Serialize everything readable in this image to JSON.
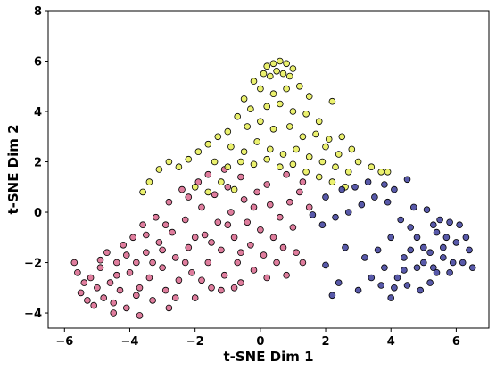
{
  "chart_data": {
    "type": "scatter",
    "title": "",
    "xlabel": "t-SNE Dim 1",
    "ylabel": "t-SNE Dim 2",
    "xlim": [
      -6.5,
      7
    ],
    "ylim": [
      -4.6,
      8
    ],
    "xticks": [
      -6,
      -4,
      -2,
      0,
      2,
      4,
      6
    ],
    "yticks": [
      -4,
      -2,
      0,
      2,
      4,
      6,
      8
    ],
    "grid": false,
    "legend": "none",
    "series": [
      {
        "color": "#d9668c",
        "points": [
          [
            -5.6,
            -2.4
          ],
          [
            -5.4,
            -2.8
          ],
          [
            -5.5,
            -3.2
          ],
          [
            -5.2,
            -2.6
          ],
          [
            -5.0,
            -3.0
          ],
          [
            -5.3,
            -3.5
          ],
          [
            -4.9,
            -2.2
          ],
          [
            -4.8,
            -3.4
          ],
          [
            -4.6,
            -2.8
          ],
          [
            -4.5,
            -3.6
          ],
          [
            -4.7,
            -1.6
          ],
          [
            -4.4,
            -2.0
          ],
          [
            -4.3,
            -3.1
          ],
          [
            -4.2,
            -1.3
          ],
          [
            -4.0,
            -2.4
          ],
          [
            -4.1,
            -3.8
          ],
          [
            -3.9,
            -1.0
          ],
          [
            -3.8,
            -2.0
          ],
          [
            -3.7,
            -3.0
          ],
          [
            -3.6,
            -0.5
          ],
          [
            -3.5,
            -1.6
          ],
          [
            -3.4,
            -2.6
          ],
          [
            -3.3,
            -3.5
          ],
          [
            -3.2,
            -0.2
          ],
          [
            -3.1,
            -1.2
          ],
          [
            -3.0,
            -2.2
          ],
          [
            -2.9,
            -3.1
          ],
          [
            -2.8,
            0.4
          ],
          [
            -2.7,
            -0.8
          ],
          [
            -2.6,
            -1.8
          ],
          [
            -2.5,
            -2.7
          ],
          [
            -2.4,
            0.9
          ],
          [
            -2.3,
            -0.3
          ],
          [
            -2.2,
            -1.4
          ],
          [
            -2.1,
            -2.4
          ],
          [
            -2.0,
            -3.4
          ],
          [
            -1.9,
            1.2
          ],
          [
            -1.8,
            0.2
          ],
          [
            -1.7,
            -0.9
          ],
          [
            -1.6,
            -2.0
          ],
          [
            -1.5,
            -3.0
          ],
          [
            -1.4,
            0.7
          ],
          [
            -1.3,
            -0.4
          ],
          [
            -1.2,
            -1.5
          ],
          [
            -1.1,
            -2.5
          ],
          [
            -1.0,
            1.0
          ],
          [
            -0.9,
            0.0
          ],
          [
            -0.8,
            -1.0
          ],
          [
            -0.7,
            -2.0
          ],
          [
            -0.6,
            -2.8
          ],
          [
            -0.5,
            0.5
          ],
          [
            -0.4,
            -0.4
          ],
          [
            -0.3,
            -1.3
          ],
          [
            -0.2,
            -2.3
          ],
          [
            -0.1,
            0.8
          ],
          [
            0.0,
            -0.7
          ],
          [
            0.1,
            -1.7
          ],
          [
            0.2,
            -2.6
          ],
          [
            0.3,
            0.3
          ],
          [
            0.4,
            -1.0
          ],
          [
            0.5,
            -2.0
          ],
          [
            0.6,
            -0.2
          ],
          [
            0.7,
            -1.4
          ],
          [
            0.8,
            -2.5
          ],
          [
            0.9,
            0.4
          ],
          [
            1.0,
            -0.6
          ],
          [
            1.1,
            -1.6
          ],
          [
            1.2,
            0.8
          ],
          [
            1.3,
            -2.0
          ],
          [
            1.5,
            0.2
          ],
          [
            -5.1,
            -3.7
          ],
          [
            -4.4,
            -2.5
          ],
          [
            -3.8,
            -3.3
          ],
          [
            -3.3,
            -2.0
          ],
          [
            -2.6,
            -3.4
          ],
          [
            -2.0,
            -1.0
          ],
          [
            -1.5,
            -1.2
          ],
          [
            -1.0,
            -0.5
          ],
          [
            -0.6,
            -1.6
          ],
          [
            -0.2,
            0.2
          ],
          [
            -4.9,
            -1.9
          ],
          [
            -4.1,
            -1.7
          ],
          [
            -3.0,
            -1.5
          ],
          [
            -2.3,
            -2.0
          ],
          [
            -1.8,
            -2.7
          ],
          [
            -1.2,
            -3.1
          ],
          [
            -0.8,
            -3.0
          ],
          [
            -3.5,
            -0.9
          ],
          [
            -2.9,
            -0.5
          ],
          [
            -2.2,
            0.6
          ],
          [
            -1.6,
            1.5
          ],
          [
            -1.1,
            1.7
          ],
          [
            -0.6,
            1.4
          ],
          [
            0.2,
            1.1
          ],
          [
            0.8,
            1.5
          ],
          [
            1.3,
            1.2
          ],
          [
            -4.5,
            -4.0
          ],
          [
            -3.7,
            -4.1
          ],
          [
            -2.8,
            -3.8
          ],
          [
            -5.7,
            -2.0
          ]
        ]
      },
      {
        "color": "#e8ef55",
        "points": [
          [
            0.2,
            5.8
          ],
          [
            0.4,
            5.9
          ],
          [
            0.6,
            6.0
          ],
          [
            0.8,
            5.9
          ],
          [
            1.0,
            5.7
          ],
          [
            0.5,
            5.6
          ],
          [
            0.7,
            5.5
          ],
          [
            0.3,
            5.4
          ],
          [
            0.9,
            5.4
          ],
          [
            0.1,
            5.5
          ],
          [
            -0.2,
            5.2
          ],
          [
            0.0,
            4.9
          ],
          [
            0.4,
            4.7
          ],
          [
            0.8,
            4.9
          ],
          [
            1.2,
            5.0
          ],
          [
            1.5,
            4.6
          ],
          [
            -0.5,
            4.5
          ],
          [
            -0.3,
            4.1
          ],
          [
            0.2,
            4.2
          ],
          [
            0.6,
            4.3
          ],
          [
            1.0,
            4.0
          ],
          [
            1.4,
            3.9
          ],
          [
            1.8,
            3.6
          ],
          [
            2.2,
            4.4
          ],
          [
            -0.7,
            3.8
          ],
          [
            -0.4,
            3.4
          ],
          [
            0.0,
            3.6
          ],
          [
            0.4,
            3.3
          ],
          [
            0.9,
            3.4
          ],
          [
            1.3,
            3.0
          ],
          [
            1.7,
            3.1
          ],
          [
            2.1,
            2.9
          ],
          [
            2.5,
            3.0
          ],
          [
            2.8,
            2.5
          ],
          [
            -1.0,
            3.2
          ],
          [
            -1.3,
            3.0
          ],
          [
            -1.6,
            2.7
          ],
          [
            -1.9,
            2.4
          ],
          [
            -2.2,
            2.1
          ],
          [
            -2.5,
            1.8
          ],
          [
            -2.8,
            2.0
          ],
          [
            -3.1,
            1.7
          ],
          [
            -3.4,
            1.2
          ],
          [
            -3.6,
            0.8
          ],
          [
            -0.9,
            2.6
          ],
          [
            -0.5,
            2.4
          ],
          [
            -0.1,
            2.8
          ],
          [
            0.3,
            2.5
          ],
          [
            0.7,
            2.3
          ],
          [
            1.1,
            2.5
          ],
          [
            1.5,
            2.2
          ],
          [
            1.9,
            2.0
          ],
          [
            2.3,
            1.8
          ],
          [
            2.7,
            1.6
          ],
          [
            3.0,
            2.0
          ],
          [
            3.4,
            1.8
          ],
          [
            3.7,
            1.6
          ],
          [
            -1.4,
            2.0
          ],
          [
            -1.0,
            1.8
          ],
          [
            -0.6,
            2.0
          ],
          [
            -0.2,
            1.9
          ],
          [
            0.2,
            2.1
          ],
          [
            0.6,
            1.8
          ],
          [
            1.0,
            1.9
          ],
          [
            1.4,
            1.6
          ],
          [
            1.8,
            1.4
          ],
          [
            2.2,
            1.2
          ],
          [
            2.6,
            1.0
          ],
          [
            -2.0,
            1.0
          ],
          [
            -1.6,
            0.8
          ],
          [
            -1.2,
            1.2
          ],
          [
            -0.8,
            0.9
          ],
          [
            2.0,
            2.6
          ],
          [
            2.4,
            2.3
          ],
          [
            3.9,
            1.6
          ]
        ]
      },
      {
        "color": "#3b3c9a",
        "points": [
          [
            3.2,
            -1.8
          ],
          [
            3.6,
            -1.5
          ],
          [
            3.8,
            -2.2
          ],
          [
            4.0,
            -1.0
          ],
          [
            4.2,
            -2.6
          ],
          [
            4.4,
            -1.8
          ],
          [
            4.6,
            -0.6
          ],
          [
            4.8,
            -2.2
          ],
          [
            5.0,
            -1.4
          ],
          [
            5.2,
            -2.8
          ],
          [
            5.4,
            -0.8
          ],
          [
            5.6,
            -1.8
          ],
          [
            5.8,
            -2.4
          ],
          [
            6.0,
            -1.2
          ],
          [
            6.2,
            -2.0
          ],
          [
            6.4,
            -1.5
          ],
          [
            4.1,
            -3.0
          ],
          [
            4.5,
            -2.9
          ],
          [
            4.9,
            -3.1
          ],
          [
            5.3,
            -2.2
          ],
          [
            5.7,
            -1.0
          ],
          [
            6.1,
            -0.5
          ],
          [
            4.3,
            -0.3
          ],
          [
            4.7,
            0.2
          ],
          [
            5.1,
            0.1
          ],
          [
            5.5,
            -0.3
          ],
          [
            3.9,
            0.4
          ],
          [
            3.5,
            0.6
          ],
          [
            3.1,
            0.3
          ],
          [
            2.7,
            0.0
          ],
          [
            2.3,
            -0.2
          ],
          [
            1.9,
            -0.5
          ],
          [
            1.6,
            -0.1
          ],
          [
            2.0,
            0.6
          ],
          [
            2.5,
            0.9
          ],
          [
            2.9,
            1.0
          ],
          [
            3.3,
            1.2
          ],
          [
            3.8,
            1.1
          ],
          [
            4.1,
            0.9
          ],
          [
            4.5,
            1.3
          ],
          [
            5.0,
            -2.0
          ],
          [
            5.2,
            -1.6
          ],
          [
            5.4,
            -2.4
          ],
          [
            5.6,
            -1.4
          ],
          [
            5.9,
            -2.0
          ],
          [
            6.3,
            -1.0
          ],
          [
            4.6,
            -1.5
          ],
          [
            4.8,
            -1.0
          ],
          [
            5.3,
            -0.5
          ],
          [
            3.4,
            -2.6
          ],
          [
            3.0,
            -3.1
          ],
          [
            2.2,
            -3.3
          ],
          [
            2.0,
            -2.1
          ],
          [
            2.4,
            -2.8
          ],
          [
            4.0,
            -3.4
          ],
          [
            6.5,
            -2.2
          ],
          [
            3.7,
            -2.9
          ],
          [
            4.4,
            -2.3
          ],
          [
            5.8,
            -0.4
          ],
          [
            2.6,
            -1.4
          ]
        ]
      }
    ]
  }
}
